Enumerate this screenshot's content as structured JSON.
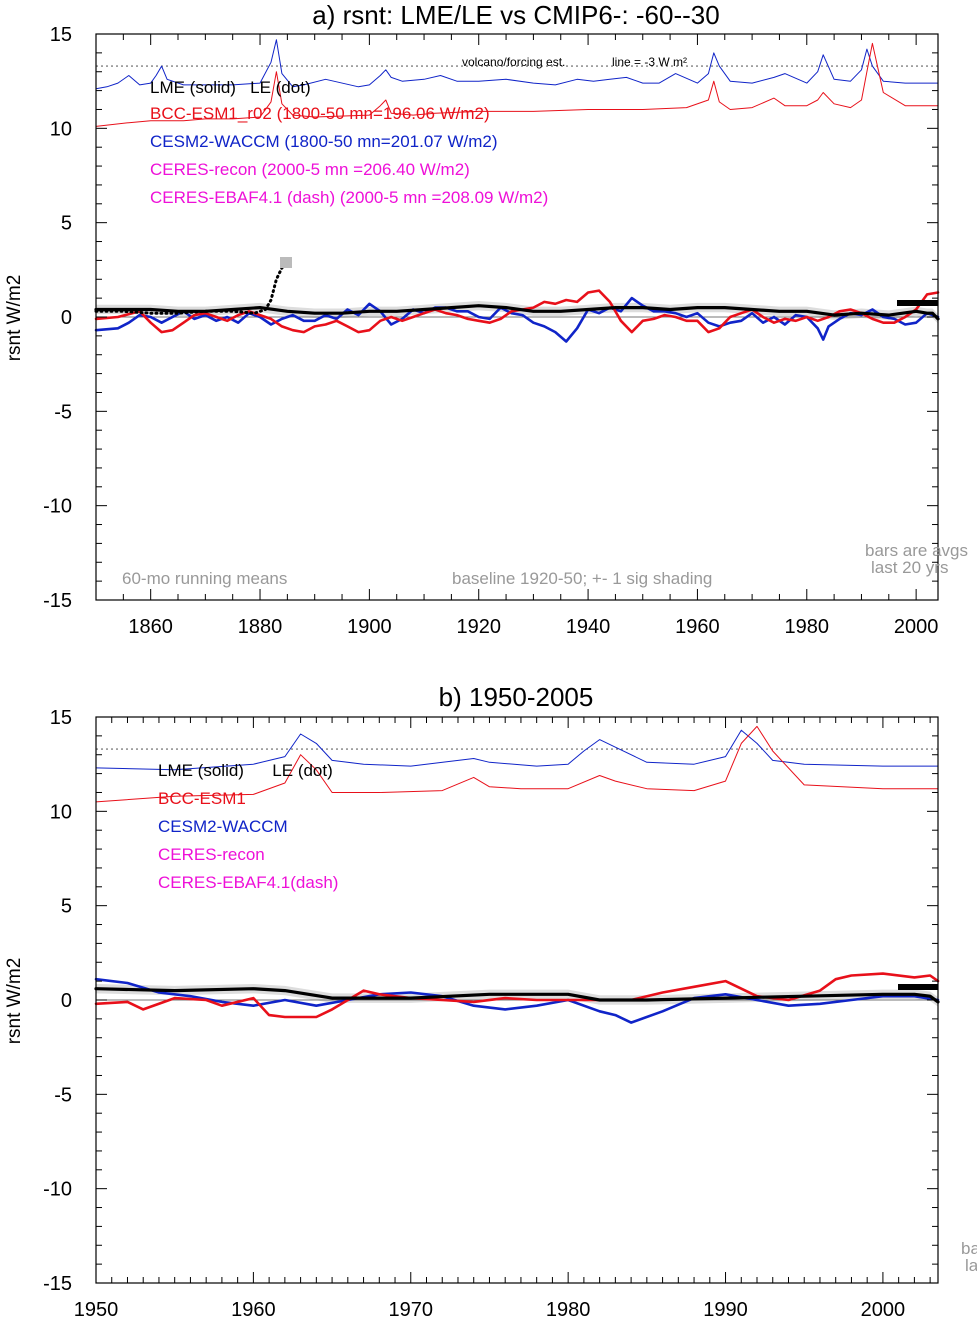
{
  "chart_data": [
    {
      "type": "line",
      "title": "a) rsnt: LME/LE vs CMIP6-: -60--30",
      "ylabel": "rsnt W/m2",
      "xlim": [
        1850,
        2004
      ],
      "ylim": [
        -15,
        15
      ],
      "xticks": [
        1860,
        1880,
        1900,
        1920,
        1940,
        1960,
        1980,
        2000
      ],
      "yticks": [
        15,
        10,
        5,
        0,
        -5,
        -10,
        -15
      ],
      "annotations": {
        "volcano_label": "volcano/forcing est.",
        "line_label": "line = -3 W m²",
        "running": "60-mo running means",
        "baseline": "baseline 1920-50; +- 1 sig shading",
        "bars1": "bars are avgs",
        "bars2": "last 20 yrs"
      },
      "legend": [
        {
          "text": "LME (solid)   LE (dot)",
          "color": "#000000"
        },
        {
          "text": "BCC-ESM1_r02 (1800-50 mn=196.06 W/m2)",
          "color": "#e8101a"
        },
        {
          "text": "CESM2-WACCM (1800-50 mn=201.07 W/m2)",
          "color": "#1024c8"
        },
        {
          "text": "CERES-recon (2000-5 mn =206.40 W/m2)",
          "color": "#ee10d8"
        },
        {
          "text": "CERES-EBAF4.1 (dash) (2000-5 mn =208.09 W/m2)",
          "color": "#ee10d8"
        }
      ],
      "reference_line_y": 13.3,
      "series": [
        {
          "color": "#1024c8",
          "role": "forcing",
          "x": [
            1850,
            1852,
            1854,
            1856,
            1858,
            1860,
            1861,
            1862,
            1863,
            1866,
            1870,
            1875,
            1880,
            1882,
            1883,
            1884,
            1886,
            1888,
            1892,
            1898,
            1900,
            1902,
            1903,
            1904,
            1906,
            1910,
            1913,
            1916,
            1920,
            1925,
            1930,
            1934,
            1938,
            1941,
            1944,
            1947,
            1950,
            1953,
            1956,
            1960,
            1962,
            1963,
            1964,
            1966,
            1970,
            1974,
            1976,
            1980,
            1982,
            1983,
            1985,
            1988,
            1990,
            1991,
            1992,
            1994,
            1998,
            2004
          ],
          "y": [
            12.1,
            12.2,
            12.4,
            12.8,
            12.3,
            12.4,
            12.8,
            13.3,
            12.6,
            12.3,
            12.3,
            12.3,
            12.4,
            13.5,
            14.7,
            12.9,
            12.2,
            12.3,
            12.6,
            12.2,
            12.3,
            12.8,
            13.1,
            12.7,
            12.5,
            12.6,
            12.8,
            12.5,
            12.5,
            12.6,
            12.4,
            12.3,
            12.6,
            12.5,
            12.6,
            12.7,
            12.4,
            12.4,
            12.9,
            12.4,
            12.9,
            14.0,
            13.3,
            12.5,
            12.4,
            12.7,
            12.9,
            12.4,
            13.0,
            13.9,
            12.6,
            12.5,
            13.1,
            14.2,
            13.3,
            12.5,
            12.4,
            12.4
          ]
        },
        {
          "color": "#e8101a",
          "role": "forcing",
          "x": [
            1850,
            1856,
            1860,
            1866,
            1870,
            1875,
            1880,
            1882,
            1883,
            1884,
            1886,
            1890,
            1900,
            1902,
            1903,
            1904,
            1908,
            1912,
            1920,
            1930,
            1940,
            1950,
            1958,
            1962,
            1963,
            1964,
            1966,
            1970,
            1974,
            1976,
            1980,
            1982,
            1983,
            1985,
            1988,
            1990,
            1991,
            1992,
            1994,
            1998,
            2004
          ],
          "y": [
            10.1,
            10.3,
            10.4,
            10.4,
            10.5,
            10.5,
            10.6,
            11.4,
            13.0,
            11.3,
            10.7,
            10.6,
            10.7,
            11.2,
            11.5,
            10.8,
            10.7,
            10.8,
            10.9,
            10.9,
            11.0,
            11.0,
            11.1,
            11.5,
            12.5,
            11.4,
            11.0,
            11.1,
            11.6,
            11.2,
            11.2,
            11.5,
            11.9,
            11.3,
            11.1,
            11.5,
            13.0,
            14.5,
            11.9,
            11.2,
            11.2
          ]
        },
        {
          "color": "#1024c8",
          "role": "model",
          "x": [
            1850,
            1854,
            1856,
            1858,
            1860,
            1862,
            1864,
            1866,
            1868,
            1870,
            1872,
            1874,
            1876,
            1878,
            1880,
            1882,
            1884,
            1886,
            1888,
            1890,
            1892,
            1894,
            1896,
            1898,
            1900,
            1902,
            1904,
            1906,
            1908,
            1910,
            1912,
            1914,
            1916,
            1918,
            1920,
            1922,
            1924,
            1926,
            1928,
            1930,
            1932,
            1934,
            1936,
            1938,
            1940,
            1942,
            1944,
            1946,
            1948,
            1950,
            1952,
            1954,
            1956,
            1958,
            1960,
            1962,
            1964,
            1966,
            1968,
            1970,
            1972,
            1974,
            1976,
            1978,
            1980,
            1982,
            1983,
            1984,
            1986,
            1988,
            1990,
            1992,
            1994,
            1996,
            1998,
            2000,
            2002,
            2004
          ],
          "y": [
            -0.7,
            -0.6,
            -0.3,
            0.1,
            0.0,
            -0.3,
            0.0,
            0.3,
            -0.1,
            0.1,
            -0.2,
            0.0,
            -0.3,
            0.2,
            0.0,
            -0.4,
            -0.1,
            0.1,
            -0.2,
            -0.2,
            0.1,
            -0.1,
            0.4,
            0.1,
            0.7,
            0.3,
            -0.4,
            -0.1,
            0.4,
            0.2,
            0.5,
            0.5,
            0.3,
            0.3,
            0.0,
            -0.1,
            0.5,
            0.2,
            0.1,
            -0.3,
            -0.5,
            -0.8,
            -1.3,
            -0.6,
            0.4,
            0.2,
            0.5,
            0.3,
            1.0,
            0.6,
            0.3,
            0.3,
            0.2,
            0.0,
            0.2,
            -0.3,
            -0.5,
            -0.3,
            -0.2,
            0.2,
            -0.3,
            0.0,
            -0.4,
            0.1,
            0.0,
            -0.6,
            -1.2,
            -0.5,
            -0.1,
            0.2,
            0.1,
            0.4,
            0.0,
            -0.1,
            -0.4,
            -0.3,
            0.2,
            0.0
          ]
        },
        {
          "color": "#e8101a",
          "role": "model",
          "x": [
            1850,
            1854,
            1858,
            1860,
            1862,
            1864,
            1866,
            1868,
            1870,
            1872,
            1874,
            1876,
            1878,
            1880,
            1882,
            1884,
            1886,
            1888,
            1890,
            1892,
            1894,
            1896,
            1898,
            1900,
            1902,
            1904,
            1906,
            1908,
            1910,
            1912,
            1914,
            1916,
            1918,
            1920,
            1922,
            1924,
            1926,
            1928,
            1930,
            1932,
            1934,
            1936,
            1938,
            1940,
            1942,
            1944,
            1946,
            1948,
            1950,
            1952,
            1954,
            1956,
            1958,
            1960,
            1962,
            1964,
            1966,
            1968,
            1970,
            1972,
            1974,
            1976,
            1978,
            1980,
            1982,
            1984,
            1986,
            1988,
            1990,
            1992,
            1994,
            1996,
            1998,
            2000,
            2002,
            2004
          ],
          "y": [
            -0.1,
            0.0,
            0.3,
            -0.3,
            -0.8,
            -0.7,
            -0.3,
            0.1,
            0.2,
            0.0,
            -0.2,
            0.1,
            0.3,
            0.1,
            -0.1,
            -0.5,
            -0.7,
            -0.8,
            -0.5,
            -0.4,
            -0.2,
            -0.5,
            -0.8,
            -0.7,
            -0.2,
            0.0,
            -0.2,
            0.0,
            0.2,
            0.4,
            0.2,
            0.1,
            -0.1,
            -0.2,
            -0.3,
            -0.1,
            0.3,
            0.4,
            0.5,
            0.8,
            0.7,
            0.9,
            0.8,
            1.3,
            1.4,
            0.8,
            -0.2,
            -0.8,
            -0.2,
            -0.1,
            0.1,
            0.0,
            -0.2,
            -0.2,
            -0.8,
            -0.6,
            0.0,
            0.2,
            0.4,
            0.0,
            -0.3,
            -0.1,
            -0.2,
            0.0,
            -0.2,
            0.0,
            0.3,
            0.4,
            0.2,
            -0.1,
            -0.3,
            -0.3,
            0.0,
            0.4,
            1.2,
            1.3
          ]
        },
        {
          "color": "#000000",
          "role": "model",
          "x": [
            1850,
            1855,
            1860,
            1865,
            1870,
            1875,
            1880,
            1885,
            1890,
            1895,
            1900,
            1905,
            1910,
            1915,
            1920,
            1925,
            1930,
            1935,
            1940,
            1945,
            1950,
            1955,
            1960,
            1965,
            1970,
            1975,
            1980,
            1985,
            1990,
            1995,
            2000,
            2002,
            2003,
            2004
          ],
          "y": [
            0.4,
            0.4,
            0.4,
            0.3,
            0.3,
            0.4,
            0.5,
            0.3,
            0.2,
            0.2,
            0.3,
            0.3,
            0.4,
            0.5,
            0.6,
            0.5,
            0.3,
            0.3,
            0.4,
            0.5,
            0.5,
            0.4,
            0.5,
            0.5,
            0.4,
            0.3,
            0.3,
            0.1,
            0.2,
            0.1,
            0.3,
            0.2,
            0.2,
            -0.1
          ]
        },
        {
          "color": "#000000",
          "role": "dotted",
          "x": [
            1850,
            1855,
            1860,
            1865,
            1870,
            1875,
            1879,
            1881,
            1882,
            1883,
            1884,
            1885
          ],
          "y": [
            0.3,
            0.3,
            0.2,
            0.2,
            0.3,
            0.3,
            0.2,
            0.4,
            0.9,
            2.0,
            2.6,
            2.9
          ]
        }
      ]
    },
    {
      "type": "line",
      "title": "b) 1950-2005",
      "ylabel": "rsnt W/m2",
      "xlim": [
        1950,
        2003.5
      ],
      "ylim": [
        -15,
        15
      ],
      "xticks": [
        1950,
        1960,
        1970,
        1980,
        1990,
        2000
      ],
      "yticks": [
        15,
        10,
        5,
        0,
        -5,
        -10,
        -15
      ],
      "annotations": {
        "edge1": "ba",
        "edge2": "la"
      },
      "legend": [
        {
          "text": "LME (solid)      LE (dot)",
          "color": "#000000"
        },
        {
          "text": "BCC-ESM1",
          "color": "#e8101a"
        },
        {
          "text": "CESM2-WACCM",
          "color": "#1024c8"
        },
        {
          "text": "CERES-recon",
          "color": "#ee10d8"
        },
        {
          "text": "CERES-EBAF4.1(dash)",
          "color": "#ee10d8"
        }
      ],
      "reference_line_y": 13.3,
      "series": [
        {
          "color": "#1024c8",
          "role": "forcing",
          "x": [
            1950,
            1955,
            1960,
            1962,
            1963,
            1964,
            1965,
            1967,
            1970,
            1974,
            1975,
            1978,
            1980,
            1981,
            1982,
            1983,
            1985,
            1988,
            1990,
            1991,
            1992,
            1993,
            1995,
            2000,
            2003.5
          ],
          "y": [
            12.3,
            12.2,
            12.5,
            12.9,
            14.1,
            13.6,
            12.7,
            12.5,
            12.4,
            12.8,
            12.6,
            12.4,
            12.5,
            13.2,
            13.8,
            13.4,
            12.6,
            12.5,
            12.9,
            14.3,
            13.6,
            12.7,
            12.5,
            12.4,
            12.4
          ]
        },
        {
          "color": "#e8101a",
          "role": "forcing",
          "x": [
            1950,
            1955,
            1960,
            1962,
            1963,
            1964,
            1965,
            1968,
            1972,
            1974,
            1975,
            1977,
            1980,
            1982,
            1983,
            1985,
            1988,
            1990,
            1991,
            1992,
            1993,
            1995,
            2000,
            2003.5
          ],
          "y": [
            10.5,
            10.8,
            10.9,
            11.5,
            13.0,
            12.2,
            11.0,
            11.0,
            11.1,
            11.8,
            11.3,
            11.2,
            11.2,
            11.9,
            11.6,
            11.2,
            11.1,
            11.6,
            13.6,
            14.5,
            13.2,
            11.4,
            11.2,
            11.2
          ]
        },
        {
          "color": "#1024c8",
          "role": "model",
          "x": [
            1950,
            1952,
            1954,
            1956,
            1958,
            1960,
            1962,
            1964,
            1966,
            1968,
            1970,
            1972,
            1974,
            1976,
            1978,
            1980,
            1982,
            1983,
            1984,
            1986,
            1988,
            1990,
            1992,
            1994,
            1996,
            1998,
            2000,
            2002,
            2003.5
          ],
          "y": [
            1.1,
            0.9,
            0.4,
            0.2,
            -0.1,
            -0.3,
            0.0,
            -0.3,
            0.0,
            0.3,
            0.4,
            0.2,
            -0.3,
            -0.5,
            -0.3,
            0.0,
            -0.6,
            -0.8,
            -1.2,
            -0.6,
            0.1,
            0.3,
            0.0,
            -0.3,
            -0.2,
            0.0,
            0.2,
            0.2,
            0.0
          ]
        },
        {
          "color": "#e8101a",
          "role": "model",
          "x": [
            1950,
            1952,
            1953,
            1955,
            1957,
            1958,
            1960,
            1961,
            1962,
            1964,
            1965,
            1967,
            1968,
            1970,
            1972,
            1974,
            1976,
            1978,
            1980,
            1982,
            1984,
            1986,
            1988,
            1990,
            1992,
            1994,
            1996,
            1997,
            1998,
            2000,
            2002,
            2003,
            2003.5
          ],
          "y": [
            -0.2,
            -0.1,
            -0.5,
            0.1,
            0.0,
            -0.3,
            0.1,
            -0.8,
            -0.9,
            -0.9,
            -0.5,
            0.5,
            0.3,
            0.1,
            0.0,
            -0.1,
            0.1,
            0.0,
            0.0,
            0.0,
            0.0,
            0.4,
            0.7,
            1.0,
            0.2,
            0.0,
            0.5,
            1.1,
            1.3,
            1.4,
            1.2,
            1.3,
            1.0
          ]
        },
        {
          "color": "#000000",
          "role": "model",
          "x": [
            1950,
            1955,
            1960,
            1962,
            1965,
            1970,
            1975,
            1980,
            1982,
            1985,
            1990,
            1995,
            2000,
            2002,
            2003,
            2003.5
          ],
          "y": [
            0.6,
            0.5,
            0.6,
            0.5,
            0.1,
            0.1,
            0.3,
            0.3,
            0.0,
            0.0,
            0.1,
            0.2,
            0.3,
            0.3,
            0.2,
            -0.1
          ]
        }
      ]
    }
  ]
}
